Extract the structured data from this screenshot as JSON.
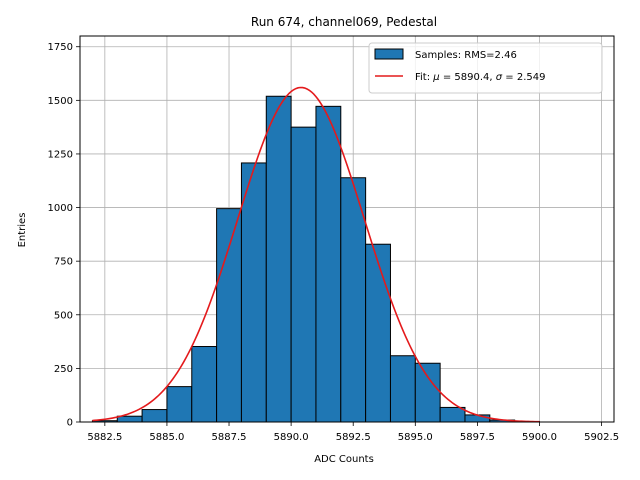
{
  "chart_data": {
    "type": "bar",
    "title": "Run 674, channel069, Pedestal",
    "xlabel": "ADC Counts",
    "ylabel": "Entries",
    "xlim": [
      5881.5,
      5903.0
    ],
    "ylim": [
      0,
      1800
    ],
    "grid": true,
    "legend_position": "top-right",
    "bin_width": 1,
    "bins": [
      {
        "x0": 5882,
        "value": 6
      },
      {
        "x0": 5883,
        "value": 27
      },
      {
        "x0": 5884,
        "value": 58
      },
      {
        "x0": 5885,
        "value": 165
      },
      {
        "x0": 5886,
        "value": 352
      },
      {
        "x0": 5887,
        "value": 995
      },
      {
        "x0": 5888,
        "value": 1208
      },
      {
        "x0": 5889,
        "value": 1519
      },
      {
        "x0": 5890,
        "value": 1375
      },
      {
        "x0": 5891,
        "value": 1472
      },
      {
        "x0": 5892,
        "value": 1139
      },
      {
        "x0": 5893,
        "value": 829
      },
      {
        "x0": 5894,
        "value": 309
      },
      {
        "x0": 5895,
        "value": 274
      },
      {
        "x0": 5896,
        "value": 68
      },
      {
        "x0": 5897,
        "value": 33
      },
      {
        "x0": 5898,
        "value": 9
      },
      {
        "x0": 5899,
        "value": 2
      }
    ],
    "fit": {
      "mu": 5890.4,
      "sigma": 2.549,
      "peak": 1560,
      "x_start": 5882,
      "x_end": 5900
    },
    "x_ticks": [
      {
        "value": 5882.5,
        "label": "5882.5"
      },
      {
        "value": 5885.0,
        "label": "5885.0"
      },
      {
        "value": 5887.5,
        "label": "5887.5"
      },
      {
        "value": 5890.0,
        "label": "5890.0"
      },
      {
        "value": 5892.5,
        "label": "5892.5"
      },
      {
        "value": 5895.0,
        "label": "5895.0"
      },
      {
        "value": 5897.5,
        "label": "5897.5"
      },
      {
        "value": 5900.0,
        "label": "5900.0"
      },
      {
        "value": 5902.5,
        "label": "5902.5"
      }
    ],
    "y_ticks": [
      {
        "value": 0,
        "label": "0"
      },
      {
        "value": 250,
        "label": "250"
      },
      {
        "value": 500,
        "label": "500"
      },
      {
        "value": 750,
        "label": "750"
      },
      {
        "value": 1000,
        "label": "1000"
      },
      {
        "value": 1250,
        "label": "1250"
      },
      {
        "value": 1500,
        "label": "1500"
      },
      {
        "value": 1750,
        "label": "1750"
      }
    ],
    "legend": {
      "samples_label": "Samples: RMS=2.46",
      "fit_prefix": "Fit: ",
      "fit_mu_symbol": "μ",
      "fit_mu_text": " = 5890.4, ",
      "fit_sigma_symbol": "σ",
      "fit_sigma_text": " = 2.549"
    },
    "colors": {
      "bar_fill": "#1f77b4",
      "bar_edge": "#000000",
      "fit_line": "#e41a1c",
      "grid": "#b0b0b0"
    }
  }
}
